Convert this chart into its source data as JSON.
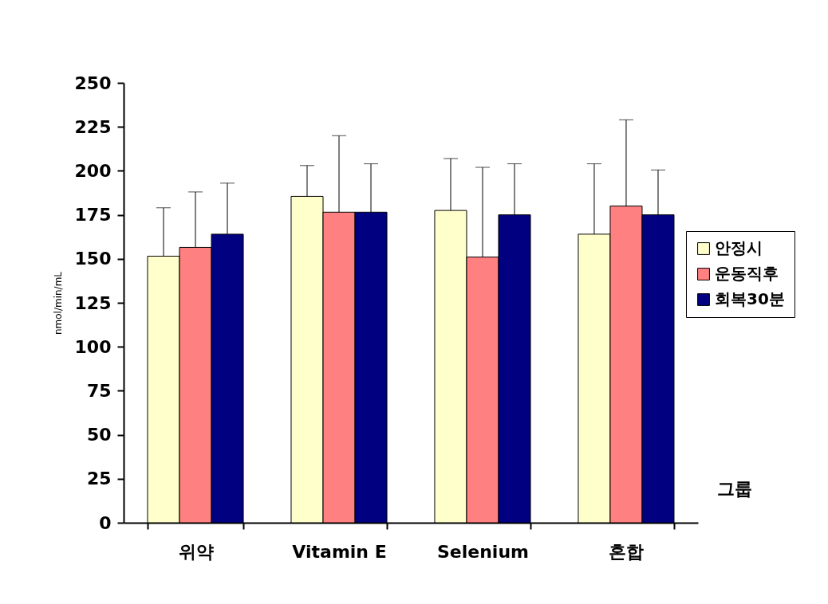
{
  "chart_data": {
    "type": "bar",
    "ylabel": "nmol/min/mL",
    "xlabel": "그룹",
    "categories": [
      "위약",
      "Vitamin E",
      "Selenium",
      "혼합"
    ],
    "ylim": [
      0,
      250
    ],
    "yticks": [
      0,
      25,
      50,
      75,
      100,
      125,
      150,
      175,
      200,
      225,
      250
    ],
    "grid": false,
    "legend": "right",
    "series": [
      {
        "name": "안정시",
        "color": "#ffffcc",
        "values": [
          151.5,
          185.5,
          177.5,
          164
        ],
        "errors": [
          [
            151.5,
            179
          ],
          [
            185.5,
            203
          ],
          [
            177.5,
            207
          ],
          [
            164,
            204
          ]
        ]
      },
      {
        "name": "운동직후",
        "color": "#ff8080",
        "values": [
          156.5,
          176.5,
          151,
          180
        ],
        "errors": [
          [
            156.5,
            188
          ],
          [
            176.5,
            220
          ],
          [
            151,
            202
          ],
          [
            180,
            229
          ]
        ]
      },
      {
        "name": "회복30분",
        "color": "#000080",
        "values": [
          164,
          176.5,
          175,
          175
        ],
        "errors": [
          [
            164,
            193
          ],
          [
            176.5,
            204
          ],
          [
            175,
            204
          ],
          [
            175,
            200.5
          ]
        ]
      }
    ]
  }
}
